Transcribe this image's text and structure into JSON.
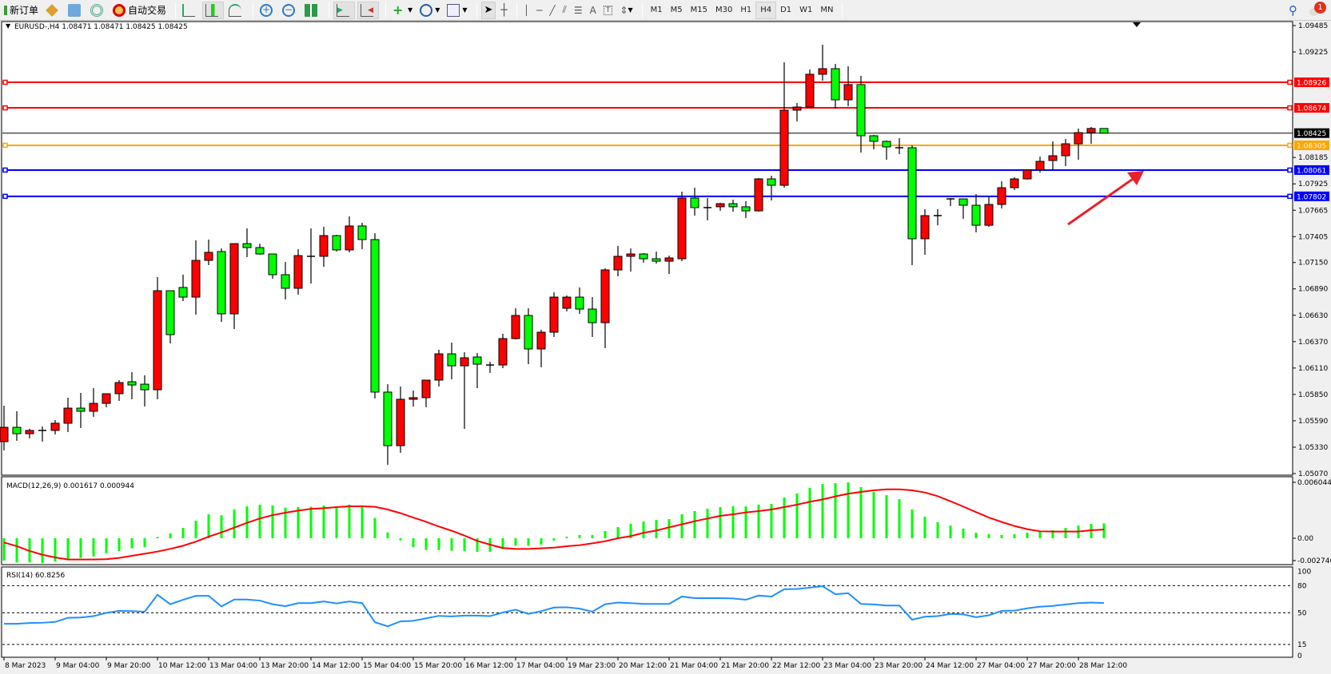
{
  "toolbar": {
    "new_order": "新订单",
    "auto_trading": "自动交易",
    "timeframes": [
      "M1",
      "M5",
      "M15",
      "M30",
      "H1",
      "H4",
      "D1",
      "W1",
      "MN"
    ],
    "active_timeframe": "H4",
    "notification_count": "1"
  },
  "chart_data": {
    "type": "candlestick",
    "header": "EURUSD-,H4  1.08471 1.08471 1.08425 1.08425",
    "symbol": "EURUSD-",
    "timeframe": "H4",
    "colors": {
      "bull": "#ff0000",
      "bear": "#00ff00",
      "wick": "#000000",
      "macd_hist": "#00ff00",
      "macd_signal": "#ff0000",
      "rsi": "#1e90ff",
      "arrow": "#e8202a"
    },
    "price_axis": {
      "range": [
        1.0507,
        1.09485
      ],
      "ticks": [
        "1.09485",
        "1.09225",
        "1.08185",
        "1.07925",
        "1.07665",
        "1.07405",
        "1.07150",
        "1.06890",
        "1.06630",
        "1.06370",
        "1.06110",
        "1.05850",
        "1.05590",
        "1.05330",
        "1.05070"
      ]
    },
    "time_labels": [
      "8 Mar 2023",
      "9 Mar 04:00",
      "9 Mar 20:00",
      "10 Mar 12:00",
      "13 Mar 04:00",
      "13 Mar 20:00",
      "14 Mar 12:00",
      "15 Mar 04:00",
      "15 Mar 20:00",
      "16 Mar 12:00",
      "17 Mar 04:00",
      "19 Mar 23:00",
      "20 Mar 12:00",
      "21 Mar 04:00",
      "21 Mar 20:00",
      "22 Mar 12:00",
      "23 Mar 04:00",
      "23 Mar 20:00",
      "24 Mar 12:00",
      "27 Mar 04:00",
      "27 Mar 20:00",
      "28 Mar 12:00"
    ],
    "time_label_every_bars": 4,
    "horizontal_lines": [
      {
        "price": "1.08926",
        "color": "#ff0000"
      },
      {
        "price": "1.08674",
        "color": "#ff0000"
      },
      {
        "price": "1.08425",
        "color": "#000000",
        "bid": true
      },
      {
        "price": "1.08305",
        "color": "#ffa500"
      },
      {
        "price": "1.08061",
        "color": "#0000ff"
      },
      {
        "price": "1.07802",
        "color": "#0000ff"
      }
    ],
    "candles_ohlc": [
      [
        1.05385,
        1.05739,
        1.05298,
        1.05526
      ],
      [
        1.05526,
        1.05684,
        1.05393,
        1.05463
      ],
      [
        1.05463,
        1.05511,
        1.05416,
        1.05495
      ],
      [
        1.05495,
        1.05534,
        1.05385,
        1.05495
      ],
      [
        1.05495,
        1.05597,
        1.05456,
        1.05566
      ],
      [
        1.05566,
        1.05818,
        1.05479,
        1.05715
      ],
      [
        1.05715,
        1.05865,
        1.05519,
        1.05684
      ],
      [
        1.05684,
        1.05912,
        1.05629,
        1.05762
      ],
      [
        1.05762,
        1.05857,
        1.05723,
        1.05857
      ],
      [
        1.05857,
        1.05991,
        1.05786,
        1.05967
      ],
      [
        1.05975,
        1.06069,
        1.05802,
        1.05943
      ],
      [
        1.05951,
        1.06038,
        1.05731,
        1.05896
      ],
      [
        1.05896,
        1.07006,
        1.05802,
        1.06872
      ],
      [
        1.06872,
        1.06872,
        1.06353,
        1.06439
      ],
      [
        1.06904,
        1.0703,
        1.0677,
        1.06809
      ],
      [
        1.06809,
        1.07368,
        1.06636,
        1.07171
      ],
      [
        1.07171,
        1.07376,
        1.07124,
        1.0725
      ],
      [
        1.07258,
        1.07289,
        1.06565,
        1.06644
      ],
      [
        1.06644,
        1.07336,
        1.06494,
        1.07336
      ],
      [
        1.07336,
        1.07486,
        1.07203,
        1.07297
      ],
      [
        1.07297,
        1.07336,
        1.07226,
        1.07234
      ],
      [
        1.07234,
        1.07234,
        1.0699,
        1.0703
      ],
      [
        1.0703,
        1.07155,
        1.06786,
        1.06896
      ],
      [
        1.06896,
        1.07281,
        1.06833,
        1.07218
      ],
      [
        1.07211,
        1.07486,
        1.06943,
        1.07211
      ],
      [
        1.07211,
        1.07502,
        1.07108,
        1.07415
      ],
      [
        1.07415,
        1.07423,
        1.07258,
        1.07274
      ],
      [
        1.07274,
        1.07604,
        1.0725,
        1.0751
      ],
      [
        1.0751,
        1.07541,
        1.07281,
        1.07376
      ],
      [
        1.07376,
        1.07439,
        1.0581,
        1.05873
      ],
      [
        1.05873,
        1.05951,
        1.05156,
        1.05345
      ],
      [
        1.05345,
        1.05928,
        1.05275,
        1.05802
      ],
      [
        1.05802,
        1.05888,
        1.05731,
        1.05818
      ],
      [
        1.05818,
        1.05991,
        1.05723,
        1.05991
      ],
      [
        1.05991,
        1.0629,
        1.05928,
        1.0625
      ],
      [
        1.0625,
        1.06361,
        1.05999,
        1.06132
      ],
      [
        1.06132,
        1.06266,
        1.05511,
        1.06211
      ],
      [
        1.06219,
        1.06258,
        1.05912,
        1.06148
      ],
      [
        1.0614,
        1.06172,
        1.06062,
        1.0614
      ],
      [
        1.0614,
        1.06447,
        1.06109,
        1.064
      ],
      [
        1.064,
        1.06699,
        1.06392,
        1.06628
      ],
      [
        1.06628,
        1.06699,
        1.06148,
        1.06298
      ],
      [
        1.06298,
        1.06487,
        1.06117,
        1.06463
      ],
      [
        1.06463,
        1.06856,
        1.06416,
        1.06809
      ],
      [
        1.06699,
        1.06825,
        1.06668,
        1.06809
      ],
      [
        1.06809,
        1.06904,
        1.06644,
        1.06691
      ],
      [
        1.06691,
        1.06809,
        1.06416,
        1.06557
      ],
      [
        1.06557,
        1.07093,
        1.06306,
        1.07077
      ],
      [
        1.07077,
        1.07313,
        1.07014,
        1.07211
      ],
      [
        1.07211,
        1.07289,
        1.07061,
        1.07234
      ],
      [
        1.07234,
        1.07242,
        1.07148,
        1.07187
      ],
      [
        1.07187,
        1.07258,
        1.0714,
        1.07163
      ],
      [
        1.07163,
        1.07218,
        1.07037,
        1.07195
      ],
      [
        1.07187,
        1.07848,
        1.07163,
        1.07785
      ],
      [
        1.07785,
        1.07887,
        1.07612,
        1.07691
      ],
      [
        1.07691,
        1.07785,
        1.07565,
        1.07691
      ],
      [
        1.07699,
        1.07738,
        1.07659,
        1.0773
      ],
      [
        1.0773,
        1.07769,
        1.07651,
        1.07699
      ],
      [
        1.07699,
        1.07754,
        1.07588,
        1.07659
      ],
      [
        1.07659,
        1.07982,
        1.07651,
        1.07974
      ],
      [
        1.07974,
        1.08005,
        1.07761,
        1.07911
      ],
      [
        1.07911,
        1.09123,
        1.07887,
        1.08651
      ],
      [
        1.08651,
        1.08722,
        1.08541,
        1.08682
      ],
      [
        1.08682,
        1.09052,
        1.08682,
        1.09005
      ],
      [
        1.09005,
        1.09296,
        1.08942,
        1.0906
      ],
      [
        1.0906,
        1.09107,
        1.08667,
        1.08753
      ],
      [
        1.08753,
        1.09084,
        1.0869,
        1.08903
      ],
      [
        1.08903,
        1.08989,
        1.08234,
        1.08399
      ],
      [
        1.08399,
        1.08407,
        1.08265,
        1.08344
      ],
      [
        1.08344,
        1.08352,
        1.08163,
        1.08289
      ],
      [
        1.08281,
        1.08375,
        1.08218,
        1.08281
      ],
      [
        1.08281,
        1.08304,
        1.07124,
        1.07384
      ],
      [
        1.07384,
        1.07675,
        1.07226,
        1.07612
      ],
      [
        1.07612,
        1.07675,
        1.07517,
        1.07612
      ],
      [
        1.07777,
        1.07785,
        1.07706,
        1.07777
      ],
      [
        1.07777,
        1.07777,
        1.0758,
        1.07714
      ],
      [
        1.07714,
        1.07824,
        1.07447,
        1.07517
      ],
      [
        1.07517,
        1.07801,
        1.07502,
        1.07722
      ],
      [
        1.07722,
        1.0795,
        1.07683,
        1.07887
      ],
      [
        1.07887,
        1.0799,
        1.07864,
        1.07974
      ],
      [
        1.07974,
        1.08061,
        1.07966,
        1.08061
      ],
      [
        1.08061,
        1.08194,
        1.08037,
        1.08147
      ],
      [
        1.08155,
        1.08344,
        1.08061,
        1.08202
      ],
      [
        1.08202,
        1.08367,
        1.081,
        1.0832
      ],
      [
        1.0832,
        1.0847,
        1.08163,
        1.0843
      ],
      [
        1.0843,
        1.08486,
        1.0832,
        1.08471
      ],
      [
        1.08471,
        1.08471,
        1.08425,
        1.08425
      ]
    ],
    "macd": {
      "label": "MACD(12,26,9) 0.001617 0.000944",
      "axis_ticks": [
        "0.006044",
        "0.00",
        "-0.002746"
      ],
      "histogram": [
        -0.00242,
        -0.00262,
        -0.00262,
        -0.00268,
        -0.00253,
        -0.00224,
        -0.00213,
        -0.00196,
        -0.00161,
        -0.00138,
        -0.00109,
        -0.00095,
        0.00014,
        0.00052,
        0.00112,
        0.0019,
        0.00259,
        0.00248,
        0.00311,
        0.00345,
        0.00363,
        0.00354,
        0.00331,
        0.00337,
        0.0034,
        0.00354,
        0.00334,
        0.00363,
        0.0034,
        0.00219,
        0.00063,
        -0.00023,
        -0.00095,
        -0.00127,
        -0.00127,
        -0.00135,
        -0.00138,
        -0.00147,
        -0.00147,
        -0.00118,
        -0.00081,
        -0.00081,
        -0.00069,
        -0.00026,
        0.00017,
        0.00035,
        0.00035,
        0.00078,
        0.00121,
        0.00155,
        0.00181,
        0.00199,
        0.00207,
        0.00259,
        0.00294,
        0.00319,
        0.00337,
        0.00345,
        0.00345,
        0.00363,
        0.00371,
        0.0044,
        0.00484,
        0.00544,
        0.00587,
        0.00596,
        0.00604,
        0.00553,
        0.00501,
        0.00466,
        0.00423,
        0.00311,
        0.00233,
        0.00173,
        0.00138,
        0.00104,
        0.0006,
        0.00043,
        0.00035,
        0.00043,
        0.0006,
        0.00078,
        0.00086,
        0.00112,
        0.00138,
        0.00155,
        0.001617
      ],
      "signal": [
        -0.00046,
        -0.00086,
        -0.00138,
        -0.00178,
        -0.00207,
        -0.0023,
        -0.0023,
        -0.0023,
        -0.00227,
        -0.00213,
        -0.0019,
        -0.00167,
        -0.00144,
        -0.00115,
        -0.00081,
        -0.00037,
        0.00017,
        0.00063,
        0.00115,
        0.00167,
        0.00213,
        0.0025,
        0.00276,
        0.00299,
        0.00317,
        0.00325,
        0.00337,
        0.00345,
        0.00345,
        0.0034,
        0.00311,
        0.00271,
        0.00224,
        0.00178,
        0.00127,
        0.00081,
        0.00029,
        -0.00029,
        -0.00069,
        -0.00106,
        -0.00115,
        -0.00115,
        -0.00109,
        -0.00101,
        -0.00086,
        -0.00075,
        -0.00055,
        -0.00032,
        0,
        0.00023,
        0.00058,
        0.00083,
        0.00118,
        0.0015,
        0.00184,
        0.00213,
        0.00242,
        0.00259,
        0.00279,
        0.00294,
        0.00311,
        0.00337,
        0.00363,
        0.00394,
        0.0042,
        0.00452,
        0.00481,
        0.00501,
        0.00518,
        0.00529,
        0.00529,
        0.00518,
        0.00495,
        0.00455,
        0.004,
        0.00342,
        0.00282,
        0.00224,
        0.00176,
        0.00132,
        0.00098,
        0.00075,
        0.00072,
        0.00072,
        0.00072,
        0.00086,
        0.000944
      ]
    },
    "rsi": {
      "label": "RSI(14) 60.8256",
      "levels": [
        80,
        50,
        15
      ],
      "axis_ticks": [
        "100",
        "80",
        "50",
        "15",
        "0"
      ],
      "values": [
        37.8,
        37.8,
        38.7,
        39,
        39.9,
        44.5,
        44.8,
        46.3,
        50,
        52.1,
        51.8,
        51.2,
        69.9,
        59.5,
        64.4,
        68.7,
        68.7,
        57,
        64.7,
        64.7,
        63.5,
        59.5,
        57.3,
        60.7,
        60.7,
        62.5,
        60.4,
        62.5,
        60.7,
        39.6,
        35,
        40.5,
        41.1,
        43.9,
        46.6,
        46,
        46.9,
        46.9,
        46.3,
        50.3,
        53.4,
        48.8,
        51.8,
        55.8,
        56.1,
        54.6,
        51.2,
        59.5,
        61.3,
        60.7,
        59.8,
        59.8,
        59.8,
        68,
        66.2,
        66.2,
        66.2,
        65.9,
        64.4,
        69,
        68,
        76,
        76.3,
        77.8,
        79.4,
        70.5,
        71.7,
        59.8,
        59.2,
        58,
        58,
        42.4,
        45.7,
        46.3,
        48.8,
        48.2,
        45.1,
        47.2,
        52.1,
        52.4,
        54.9,
        56.7,
        57.6,
        59.2,
        60.7,
        61.3,
        60.8256
      ]
    }
  }
}
